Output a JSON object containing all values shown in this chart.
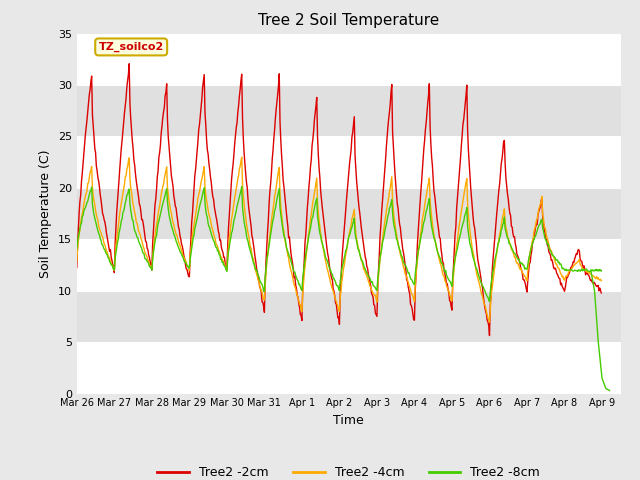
{
  "title": "Tree 2 Soil Temperature",
  "ylabel": "Soil Temperature (C)",
  "xlabel": "Time",
  "annotation_text": "TZ_soilco2",
  "ylim": [
    0,
    35
  ],
  "colors": {
    "2cm": "#dd0000",
    "4cm": "#ffaa00",
    "8cm": "#44cc00"
  },
  "xtick_labels": [
    "Mar 26",
    "Mar 27",
    "Mar 28",
    "Mar 29",
    "Mar 30",
    "Mar 31",
    "Apr 1",
    "Apr 2",
    "Apr 3",
    "Apr 4",
    "Apr 5",
    "Apr 6",
    "Apr 7",
    "Apr 8",
    "Apr 9"
  ],
  "ytick_labels": [
    0,
    5,
    10,
    15,
    20,
    25,
    30,
    35
  ],
  "legend_labels": [
    "Tree2 -2cm",
    "Tree2 -4cm",
    "Tree2 -8cm"
  ],
  "fig_bg": "#e8e8e8",
  "band_colors": [
    "#ffffff",
    "#e0e0e0"
  ],
  "title_fontsize": 11,
  "label_fontsize": 9,
  "tick_fontsize": 8
}
